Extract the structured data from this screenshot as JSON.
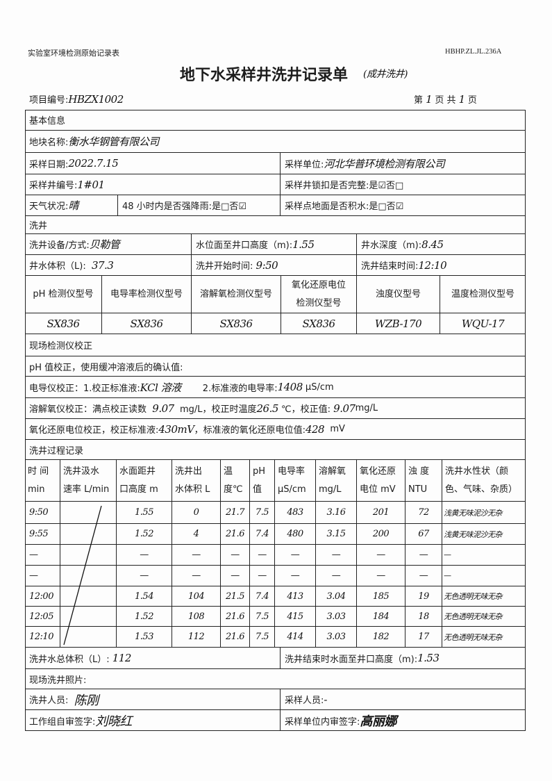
{
  "header": {
    "form_category": "实验室环境检测原始记录表",
    "form_code": "HBHP.ZL.JL.236A",
    "title": "地下水采样井洗井记录单",
    "title_note": "(成井洗井)",
    "project_no_label": "项目编号:",
    "project_no": "HBZX1002",
    "page_prefix": "第",
    "page_no": "1",
    "page_mid": "页 共",
    "page_total": "1",
    "page_suffix": "页"
  },
  "basic": {
    "section": "基本信息",
    "plot_label": "地块名称:",
    "plot_value": "衡水华钢管有限公司",
    "date_label": "采样日期:",
    "date_value": "2022.7.15",
    "unit_label": "采样单位:",
    "unit_value": "河北华普环境检测有限公司",
    "well_no_label": "采样井编号:",
    "well_no_value": "1#01",
    "lock_label": "采样井锁扣是否完整:",
    "lock_value": "是☑否□",
    "weather_label": "天气状况:",
    "weather_value": "晴",
    "rain_label": "48 小时内是否强降雨:",
    "rain_value": "是□否☑",
    "ponding_label": "采样点地面是否积水:",
    "ponding_value": "是□否☑"
  },
  "washing": {
    "section": "洗井",
    "equip_label": "洗井设备/方式:",
    "equip_value": "贝勒管",
    "water_level_label": "水位面至井口高度（m):",
    "water_level_value": "1.55",
    "depth_label": "井水深度（m):",
    "depth_value": "8.45",
    "volume_label": "井水体积（L):",
    "volume_value": "37.3",
    "start_label": "洗井开始时间:",
    "start_value": "9:50",
    "end_label": "洗井结束时间:",
    "end_value": "12:10",
    "instrument_headers": [
      "pH 检测仪型号",
      "电导率检测仪型号",
      "溶解氧检测仪型号",
      "氧化还原电位|检测仪型号",
      "浊度仪型号",
      "温度检测仪型号"
    ],
    "instrument_values": [
      "SX836",
      "SX836",
      "SX836",
      "SX836",
      "WZB-170",
      "WQU-17"
    ]
  },
  "calibration": {
    "section": "现场检测仪校正",
    "ph_line": "pH 值校正，使用缓冲溶液后的确认值:",
    "cond_label1": "电导仪校正：1.校正标准液:",
    "cond_std": "KCl 溶液",
    "cond_label2": "2.标准液的电导率:",
    "cond_value": "1408",
    "cond_unit": "μS/cm",
    "do_label1": "溶解氧仪校正：满点校正读数",
    "do_reading": "9.07",
    "do_label2": "mg/L，校正时温度",
    "do_temp": "26.5",
    "do_label3": "℃，校正值:",
    "do_value": "9.07",
    "do_unit": "mg/L",
    "orp_label1": "氧化还原电位校正，校正标准液:",
    "orp_std": "430mV",
    "orp_label2": "，标准液的氧化还原电位值:",
    "orp_value": "428",
    "orp_unit": "mV"
  },
  "process": {
    "section": "洗井过程记录",
    "headers": [
      [
        "时 间",
        "min"
      ],
      [
        "洗井汲水",
        "速率 L/min"
      ],
      [
        "水面距井",
        "口高度 m"
      ],
      [
        "洗井出",
        "水体积 L"
      ],
      [
        "温",
        "度℃"
      ],
      [
        "pH",
        "值"
      ],
      [
        "电导率",
        "μS/cm"
      ],
      [
        "溶解氧",
        "mg/L"
      ],
      [
        "氧化还原",
        "电位 mV"
      ],
      [
        "浊  度",
        "NTU"
      ],
      [
        "洗井水性状（颜",
        "色、气味、杂质）"
      ]
    ],
    "rows": [
      [
        "9:50",
        "",
        "1.55",
        "0",
        "21.7",
        "7.5",
        "483",
        "3.16",
        "201",
        "72",
        "浅黄无味泥沙无杂"
      ],
      [
        "9:55",
        "",
        "1.52",
        "4",
        "21.6",
        "7.4",
        "480",
        "3.15",
        "200",
        "67",
        "浅黄无味泥沙无杂"
      ],
      [
        "—",
        "",
        "—",
        "—",
        "—",
        "—",
        "—",
        "—",
        "—",
        "—",
        "—"
      ],
      [
        "—",
        "",
        "—",
        "—",
        "—",
        "—",
        "—",
        "—",
        "—",
        "—",
        "—"
      ],
      [
        "12:00",
        "",
        "1.54",
        "104",
        "21.5",
        "7.4",
        "413",
        "3.04",
        "185",
        "19",
        "无色透明无味无杂"
      ],
      [
        "12:05",
        "",
        "1.52",
        "108",
        "21.6",
        "7.5",
        "415",
        "3.03",
        "184",
        "18",
        "无色透明无味无杂"
      ],
      [
        "12:10",
        "",
        "1.53",
        "112",
        "21.6",
        "7.5",
        "414",
        "3.03",
        "182",
        "17",
        "无色透明无味无杂"
      ]
    ]
  },
  "footer": {
    "total_label": "洗井水总体积（L）:",
    "total_value": "112",
    "end_level_label": "洗井结束时水面至井口高度（m):",
    "end_level_value": "1.53",
    "photo_label": "现场洗井照片:",
    "washer_label": "洗井人员:",
    "washer_value": "陈刚",
    "sampler_label": "采样人员:",
    "sampler_value": "-",
    "self_review_label": "工作组自审签字:",
    "self_review_value": "刘晓红",
    "internal_review_label": "采样单位内审签字:",
    "internal_review_value": "高丽娜"
  }
}
